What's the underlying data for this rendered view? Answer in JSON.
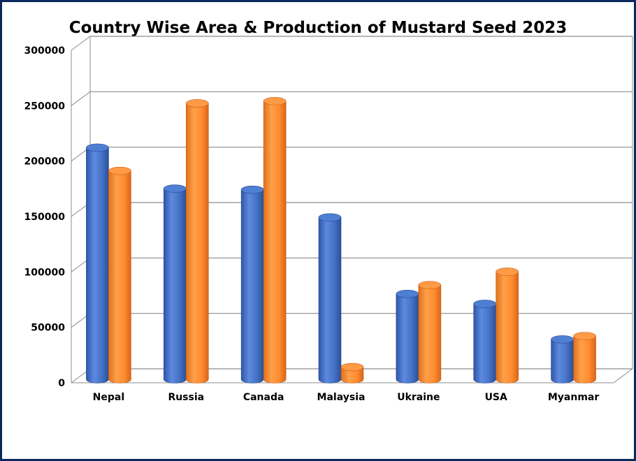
{
  "chart_data": {
    "type": "bar",
    "title": "Country Wise Area & Production of Mustard Seed 2023",
    "categories": [
      "Nepal",
      "Russia",
      "Canada",
      "Malaysia",
      "Ukraine",
      "USA",
      "Myanmar"
    ],
    "series": [
      {
        "values": [
          209000,
          172000,
          171000,
          146000,
          77000,
          68000,
          36000
        ]
      },
      {
        "values": [
          188000,
          249000,
          251000,
          11000,
          85000,
          97000,
          39000
        ]
      }
    ],
    "ylim": [
      0,
      300000
    ],
    "yticks": [
      "0",
      "50000",
      "100000",
      "150000",
      "200000",
      "250000",
      "300000"
    ],
    "xlabel": "",
    "ylabel": "",
    "grid": true,
    "legend": "none",
    "colors": [
      "#4472c4",
      "#ff8c2f"
    ]
  }
}
